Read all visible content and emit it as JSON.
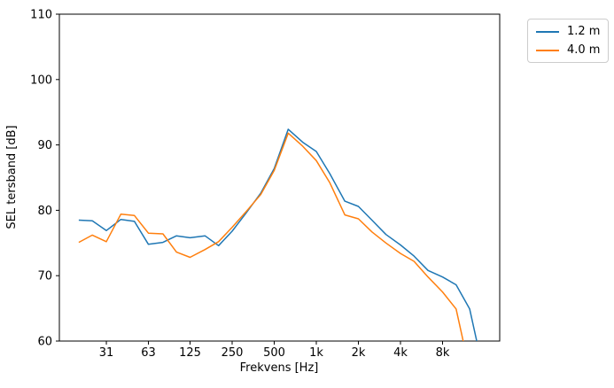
{
  "figure": {
    "background": "#ffffff"
  },
  "chart_data": {
    "type": "line",
    "xscale": "log",
    "grid": false,
    "title": "",
    "xlabel": "Frekvens [Hz]",
    "ylabel": "SEL tersband [dB]",
    "ylim": [
      60,
      110
    ],
    "yticks": [
      60,
      70,
      80,
      90,
      100,
      110
    ],
    "ytick_labels": [
      "60",
      "70",
      "80",
      "90",
      "100",
      "110"
    ],
    "xticks": [
      31.5,
      63,
      125,
      250,
      500,
      1000,
      2000,
      4000,
      8000
    ],
    "xtick_labels": [
      "31",
      "63",
      "125",
      "250",
      "500",
      "1k",
      "2k",
      "4k",
      "8k"
    ],
    "x": [
      20,
      25,
      31.5,
      40,
      50,
      63,
      80,
      100,
      125,
      160,
      200,
      250,
      315,
      400,
      500,
      630,
      800,
      1000,
      1250,
      1600,
      2000,
      2500,
      3150,
      4000,
      5000,
      6300,
      8000,
      10000,
      12500,
      16000
    ],
    "series": [
      {
        "name": "1.2 m",
        "color": "#1f77b4",
        "values": [
          78.5,
          78.4,
          76.9,
          78.6,
          78.3,
          74.8,
          75.1,
          76.1,
          75.8,
          76.1,
          74.6,
          76.8,
          79.6,
          82.6,
          86.4,
          92.4,
          90.4,
          89.0,
          85.6,
          81.4,
          80.6,
          78.5,
          76.3,
          74.7,
          73.0,
          70.8,
          69.8,
          68.6,
          64.9,
          54.5
        ]
      },
      {
        "name": "4.0 m",
        "color": "#ff7f0e",
        "values": [
          75.1,
          76.2,
          75.2,
          79.4,
          79.2,
          76.5,
          76.4,
          73.6,
          72.8,
          74.0,
          75.2,
          77.4,
          79.8,
          82.4,
          86.1,
          91.8,
          89.8,
          87.6,
          84.2,
          79.3,
          78.7,
          76.7,
          75.0,
          73.4,
          72.2,
          69.8,
          67.5,
          64.9,
          55.5,
          null
        ]
      }
    ],
    "legend": {
      "position": "outside-top-right",
      "entries": [
        "1.2 m",
        "4.0 m"
      ]
    }
  }
}
